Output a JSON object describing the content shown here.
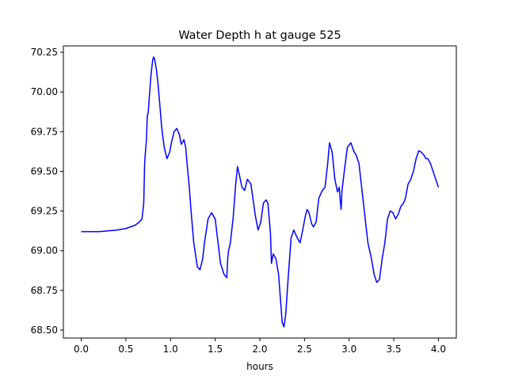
{
  "chart_data": {
    "type": "line",
    "title": "Water Depth h at gauge 525",
    "xlabel": "hours",
    "ylabel": "",
    "xlim": [
      -0.2,
      4.2
    ],
    "ylim": [
      68.45,
      70.29
    ],
    "x_ticks": [
      0.0,
      0.5,
      1.0,
      1.5,
      2.0,
      2.5,
      3.0,
      3.5,
      4.0
    ],
    "x_tick_labels": [
      "0.0",
      "0.5",
      "1.0",
      "1.5",
      "2.0",
      "2.5",
      "3.0",
      "3.5",
      "4.0"
    ],
    "y_ticks": [
      68.5,
      68.75,
      69.0,
      69.25,
      69.5,
      69.75,
      70.0,
      70.25
    ],
    "y_tick_labels": [
      "68.50",
      "68.75",
      "69.00",
      "69.25",
      "69.50",
      "69.75",
      "70.00",
      "70.25"
    ],
    "grid": false,
    "series": [
      {
        "name": "h",
        "color": "#0000ff",
        "x": [
          0.0,
          0.1,
          0.2,
          0.3,
          0.4,
          0.5,
          0.55,
          0.6,
          0.65,
          0.68,
          0.7,
          0.71,
          0.72,
          0.73,
          0.74,
          0.75,
          0.76,
          0.78,
          0.8,
          0.81,
          0.82,
          0.84,
          0.86,
          0.88,
          0.9,
          0.93,
          0.96,
          0.99,
          1.01,
          1.04,
          1.07,
          1.1,
          1.12,
          1.15,
          1.17,
          1.19,
          1.21,
          1.23,
          1.26,
          1.3,
          1.33,
          1.36,
          1.38,
          1.42,
          1.46,
          1.5,
          1.53,
          1.56,
          1.6,
          1.63,
          1.64,
          1.65,
          1.67,
          1.7,
          1.73,
          1.75,
          1.77,
          1.8,
          1.83,
          1.86,
          1.9,
          1.93,
          1.95,
          1.98,
          2.01,
          2.04,
          2.07,
          2.09,
          2.11,
          2.12,
          2.13,
          2.15,
          2.18,
          2.21,
          2.23,
          2.25,
          2.27,
          2.29,
          2.32,
          2.35,
          2.38,
          2.42,
          2.45,
          2.48,
          2.51,
          2.53,
          2.55,
          2.58,
          2.6,
          2.63,
          2.66,
          2.7,
          2.73,
          2.76,
          2.78,
          2.81,
          2.84,
          2.87,
          2.89,
          2.9,
          2.91,
          2.92,
          2.95,
          2.98,
          3.02,
          3.05,
          3.08,
          3.11,
          3.15,
          3.18,
          3.21,
          3.25,
          3.28,
          3.31,
          3.34,
          3.37,
          3.4,
          3.43,
          3.46,
          3.49,
          3.52,
          3.55,
          3.58,
          3.61,
          3.63,
          3.66,
          3.69,
          3.72,
          3.75,
          3.78,
          3.81,
          3.84,
          3.86,
          3.88,
          3.91,
          3.94,
          3.97,
          4.0
        ],
        "y": [
          69.12,
          69.12,
          69.12,
          69.125,
          69.13,
          69.14,
          69.15,
          69.16,
          69.18,
          69.2,
          69.3,
          69.55,
          69.63,
          69.7,
          69.85,
          69.87,
          69.95,
          70.1,
          70.2,
          70.22,
          70.21,
          70.15,
          70.05,
          69.92,
          69.78,
          69.65,
          69.58,
          69.62,
          69.68,
          69.75,
          69.77,
          69.73,
          69.67,
          69.7,
          69.65,
          69.52,
          69.4,
          69.25,
          69.05,
          68.9,
          68.88,
          68.95,
          69.05,
          69.2,
          69.24,
          69.2,
          69.06,
          68.92,
          68.85,
          68.83,
          68.95,
          69.0,
          69.05,
          69.2,
          69.42,
          69.53,
          69.48,
          69.4,
          69.38,
          69.45,
          69.42,
          69.3,
          69.22,
          69.13,
          69.18,
          69.3,
          69.32,
          69.3,
          69.17,
          69.1,
          68.92,
          68.98,
          68.95,
          68.85,
          68.7,
          68.55,
          68.52,
          68.6,
          68.85,
          69.08,
          69.13,
          69.08,
          69.05,
          69.13,
          69.22,
          69.26,
          69.24,
          69.17,
          69.15,
          69.18,
          69.33,
          69.38,
          69.4,
          69.55,
          69.68,
          69.62,
          69.45,
          69.37,
          69.4,
          69.32,
          69.26,
          69.38,
          69.52,
          69.65,
          69.68,
          69.63,
          69.6,
          69.55,
          69.35,
          69.2,
          69.05,
          68.95,
          68.85,
          68.8,
          68.82,
          68.95,
          69.05,
          69.2,
          69.25,
          69.24,
          69.2,
          69.23,
          69.28,
          69.3,
          69.33,
          69.42,
          69.45,
          69.5,
          69.58,
          69.63,
          69.62,
          69.6,
          69.58,
          69.58,
          69.55,
          69.5,
          69.45,
          69.4
        ]
      }
    ]
  }
}
